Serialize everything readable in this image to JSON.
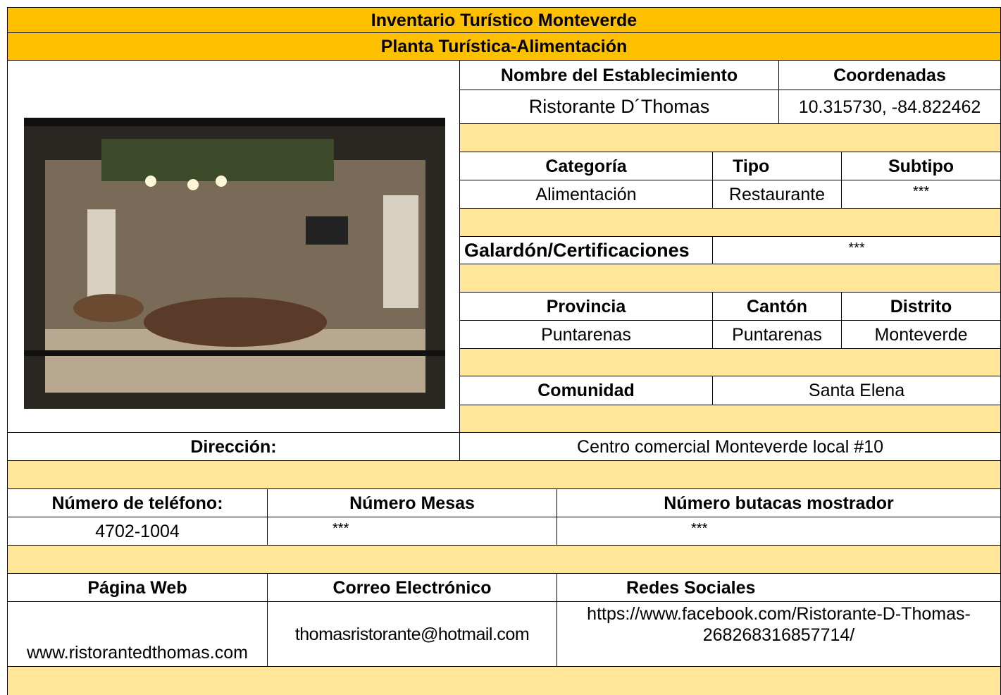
{
  "header": {
    "title": "Inventario Turístico Monteverde",
    "subtitle": "Planta Turística-Alimentación"
  },
  "establishment": {
    "name_label": "Nombre del Establecimiento",
    "name": "Ristorante D´Thomas",
    "coordinates_label": "Coordenadas",
    "coordinates": "10.315730, -84.822462"
  },
  "classification": {
    "category_label": "Categoría",
    "category": "Alimentación",
    "type_label": "Tipo",
    "type": "Restaurante",
    "subtype_label": "Subtipo",
    "subtype": "***"
  },
  "awards": {
    "label": "Galardón/Certificaciones",
    "value": "***"
  },
  "location": {
    "province_label": "Provincia",
    "province": "Puntarenas",
    "canton_label": "Cantón",
    "canton": "Puntarenas",
    "district_label": "Distrito",
    "district": "Monteverde",
    "community_label": "Comunidad",
    "community": "Santa Elena",
    "address_label": "Dirección:",
    "address": "Centro comercial Monteverde local #10"
  },
  "details": {
    "phone_label": "Número de teléfono:",
    "phone": "4702-1004",
    "tables_label": "Número Mesas",
    "tables": "***",
    "counter_seats_label": "Número butacas mostrador",
    "counter_seats": "***"
  },
  "online": {
    "web_label": "Página Web",
    "web": "www.ristorantedthomas.com",
    "email_label": "Correo Electrónico",
    "email": "thomasristorante@hotmail.com",
    "social_label": "Redes Sociales",
    "social": "https://www.facebook.com/Ristorante-D-Thomas- 268268316857714/"
  }
}
